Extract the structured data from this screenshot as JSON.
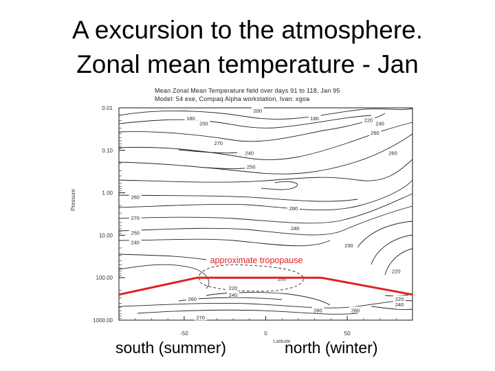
{
  "slide": {
    "title_line1": "A excursion to the atmosphere.",
    "title_line2": "Zonal mean temperature - Jan"
  },
  "figure_header": {
    "line1": "Mean Zonal Mean Temperature field over days 91 to 118, Jan 95",
    "line2": "Model: 54 exe, Compaq Alpha workstation, Ivan: xgoa"
  },
  "bottom_labels": {
    "south": "south (summer)",
    "north": "north (winter)"
  },
  "chart_data": {
    "type": "contour",
    "ylabel": "Pressure",
    "xlabel": "Latitude",
    "y_scale": "log",
    "y_reversed": true,
    "ylim": [
      0.01,
      1000
    ],
    "xlim": [
      -90,
      90
    ],
    "y_ticks": [
      {
        "value": 0.01,
        "label": "0.01"
      },
      {
        "value": 0.1,
        "label": "0.10"
      },
      {
        "value": 1,
        "label": "1.00"
      },
      {
        "value": 10,
        "label": "10.00"
      },
      {
        "value": 100,
        "label": "100.00"
      },
      {
        "value": 1000,
        "label": "1000.00"
      }
    ],
    "x_ticks": [
      {
        "value": -50,
        "label": "-50"
      },
      {
        "value": 0,
        "label": "0"
      },
      {
        "value": 50,
        "label": "50"
      }
    ],
    "contour_labels": [
      {
        "text": "200",
        "lat": -5,
        "p": 0.012
      },
      {
        "text": "180",
        "lat": -46,
        "p": 0.018
      },
      {
        "text": "200",
        "lat": -38,
        "p": 0.024
      },
      {
        "text": "180",
        "lat": 30,
        "p": 0.018
      },
      {
        "text": "220",
        "lat": 63,
        "p": 0.02
      },
      {
        "text": "240",
        "lat": 70,
        "p": 0.024
      },
      {
        "text": "260",
        "lat": 67,
        "p": 0.04
      },
      {
        "text": "270",
        "lat": -29,
        "p": 0.07
      },
      {
        "text": "240",
        "lat": -10,
        "p": 0.12
      },
      {
        "text": "260",
        "lat": 78,
        "p": 0.12
      },
      {
        "text": "250",
        "lat": -9,
        "p": 0.25
      },
      {
        "text": "260",
        "lat": -80,
        "p": 1.3
      },
      {
        "text": "260",
        "lat": 17,
        "p": 2.4
      },
      {
        "text": "270",
        "lat": -80,
        "p": 4.0
      },
      {
        "text": "240",
        "lat": 18,
        "p": 7.0
      },
      {
        "text": "250",
        "lat": -80,
        "p": 9.0
      },
      {
        "text": "240",
        "lat": -80,
        "p": 15
      },
      {
        "text": "230",
        "lat": 51,
        "p": 18
      },
      {
        "text": "220",
        "lat": 80,
        "p": 72
      },
      {
        "text": "200",
        "lat": 10,
        "p": 108
      },
      {
        "text": "220",
        "lat": -20,
        "p": 180
      },
      {
        "text": "240",
        "lat": -20,
        "p": 260
      },
      {
        "text": "260",
        "lat": -45,
        "p": 330
      },
      {
        "text": "220",
        "lat": 82,
        "p": 330
      },
      {
        "text": "240",
        "lat": 82,
        "p": 440
      },
      {
        "text": "280",
        "lat": 32,
        "p": 600
      },
      {
        "text": "260",
        "lat": 55,
        "p": 600
      },
      {
        "text": "270",
        "lat": -40,
        "p": 900
      }
    ],
    "annotation": {
      "text": "approximate tropopause",
      "color": "#e02020",
      "line": [
        {
          "lat": -90,
          "p": 250
        },
        {
          "lat": -42,
          "p": 100
        },
        {
          "lat": 34,
          "p": 100
        },
        {
          "lat": 90,
          "p": 250
        }
      ]
    }
  }
}
